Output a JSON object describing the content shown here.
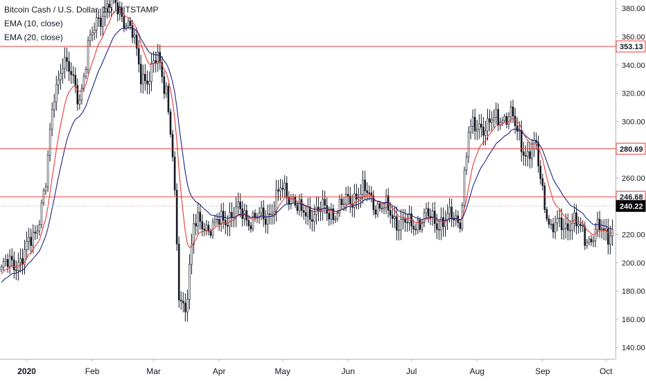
{
  "chart_data": {
    "type": "candlestick",
    "title": "Bitcoin Cash / U.S. Dollar, 1D, BITSTAMP",
    "indicators": [
      "EMA (10, close)",
      "EMA (20, close)"
    ],
    "x_ticks": [
      "2020",
      "Feb",
      "Mar",
      "Apr",
      "May",
      "Jun",
      "Jul",
      "Aug",
      "Sep",
      "Oct"
    ],
    "y_ticks": [
      "140.00",
      "160.00",
      "180.00",
      "200.00",
      "220.00",
      "240.00",
      "260.00",
      "280.00",
      "300.00",
      "320.00",
      "340.00",
      "360.00",
      "380.00"
    ],
    "ylim": [
      132,
      386
    ],
    "horizontal_levels": [
      {
        "value": 353.13,
        "label": "353.13"
      },
      {
        "value": 280.69,
        "label": "280.69"
      },
      {
        "value": 246.68,
        "label": "246.68"
      }
    ],
    "last_price": {
      "value": 240.22,
      "label": "240.22"
    },
    "colors": {
      "candle": "#131722",
      "level": "#e53935",
      "ema10": "#e53935",
      "ema20": "#1a237e",
      "axis_bg": "#ffffff",
      "last_price_bg": "#000000",
      "grid_line": "#9e9e9e"
    },
    "price_path": {
      "days_start": "2019-12-20",
      "key_closes": [
        [
          "2019-12-20",
          195
        ],
        [
          "2019-12-31",
          205
        ],
        [
          "2020-01-05",
          222
        ],
        [
          "2020-01-10",
          255
        ],
        [
          "2020-01-14",
          320
        ],
        [
          "2020-01-18",
          345
        ],
        [
          "2020-01-22",
          330
        ],
        [
          "2020-01-26",
          318
        ],
        [
          "2020-01-30",
          350
        ],
        [
          "2020-02-04",
          375
        ],
        [
          "2020-02-10",
          385
        ],
        [
          "2020-02-15",
          378
        ],
        [
          "2020-02-20",
          360
        ],
        [
          "2020-02-24",
          335
        ],
        [
          "2020-02-28",
          330
        ],
        [
          "2020-03-03",
          345
        ],
        [
          "2020-03-07",
          325
        ],
        [
          "2020-03-10",
          275
        ],
        [
          "2020-03-13",
          175
        ],
        [
          "2020-03-16",
          170
        ],
        [
          "2020-03-20",
          225
        ],
        [
          "2020-03-25",
          228
        ],
        [
          "2020-03-30",
          225
        ],
        [
          "2020-04-06",
          235
        ],
        [
          "2020-04-10",
          235
        ],
        [
          "2020-04-16",
          232
        ],
        [
          "2020-04-22",
          230
        ],
        [
          "2020-04-30",
          250
        ],
        [
          "2020-05-06",
          248
        ],
        [
          "2020-05-10",
          232
        ],
        [
          "2020-05-16",
          238
        ],
        [
          "2020-05-22",
          235
        ],
        [
          "2020-05-30",
          240
        ],
        [
          "2020-06-05",
          250
        ],
        [
          "2020-06-10",
          248
        ],
        [
          "2020-06-16",
          240
        ],
        [
          "2020-06-22",
          233
        ],
        [
          "2020-06-30",
          225
        ],
        [
          "2020-07-06",
          232
        ],
        [
          "2020-07-12",
          230
        ],
        [
          "2020-07-18",
          230
        ],
        [
          "2020-07-24",
          232
        ],
        [
          "2020-07-28",
          290
        ],
        [
          "2020-08-02",
          300
        ],
        [
          "2020-08-06",
          295
        ],
        [
          "2020-08-12",
          305
        ],
        [
          "2020-08-17",
          302
        ],
        [
          "2020-08-21",
          290
        ],
        [
          "2020-08-25",
          275
        ],
        [
          "2020-08-29",
          280
        ],
        [
          "2020-09-02",
          245
        ],
        [
          "2020-09-05",
          220
        ],
        [
          "2020-09-10",
          230
        ],
        [
          "2020-09-15",
          226
        ],
        [
          "2020-09-20",
          224
        ],
        [
          "2020-09-24",
          215
        ],
        [
          "2020-09-29",
          225
        ],
        [
          "2020-10-04",
          222
        ],
        [
          "2020-10-09",
          240.22
        ]
      ]
    }
  }
}
